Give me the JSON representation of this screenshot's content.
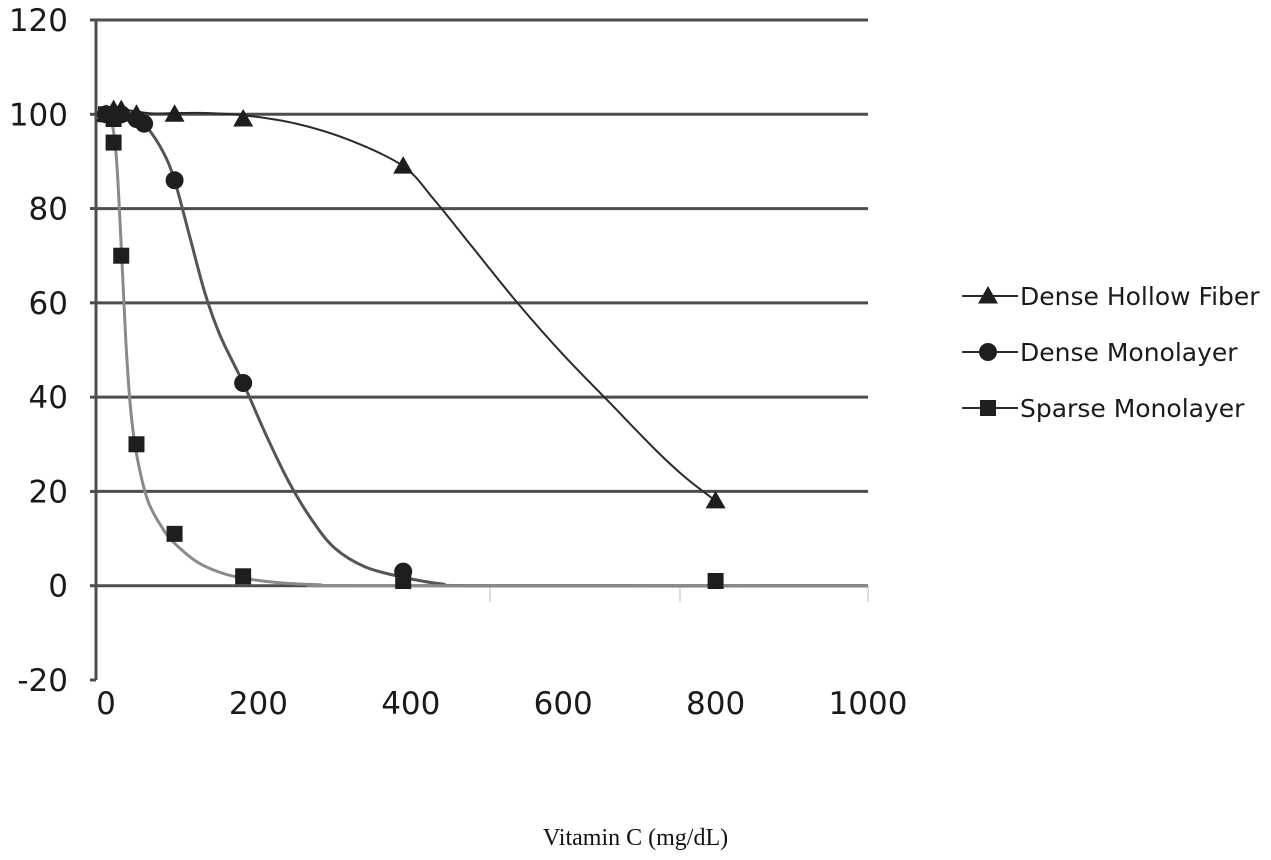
{
  "chart_data": {
    "type": "line",
    "xlabel": "Vitamin C (mg/dL)",
    "ylabel": "",
    "xlim": [
      0,
      1000
    ],
    "ylim": [
      -20,
      120
    ],
    "x_ticks": [
      "0",
      "200",
      "400",
      "600",
      "800",
      "1000"
    ],
    "y_ticks": [
      "120",
      "100",
      "80",
      "60",
      "40",
      "20",
      "0",
      "-20"
    ],
    "grid": "horizontal",
    "legend_position": "right",
    "series": [
      {
        "name": "Dense Hollow Fiber",
        "marker": "triangle",
        "color": "#2a2a2a",
        "points": [
          [
            0,
            100
          ],
          [
            10,
            101
          ],
          [
            20,
            101
          ],
          [
            40,
            100
          ],
          [
            90,
            100
          ],
          [
            180,
            99
          ],
          [
            390,
            89
          ],
          [
            800,
            18
          ]
        ],
        "curve": [
          [
            0,
            100
          ],
          [
            20,
            101
          ],
          [
            60,
            100.2
          ],
          [
            120,
            100.3
          ],
          [
            180,
            99.8
          ],
          [
            250,
            98
          ],
          [
            320,
            94.5
          ],
          [
            390,
            89
          ],
          [
            430,
            82
          ],
          [
            480,
            72
          ],
          [
            540,
            60
          ],
          [
            600,
            49
          ],
          [
            660,
            39
          ],
          [
            720,
            29
          ],
          [
            760,
            23
          ],
          [
            800,
            18
          ]
        ]
      },
      {
        "name": "Dense Monolayer",
        "marker": "circle",
        "color": "#555555",
        "points": [
          [
            0,
            100
          ],
          [
            10,
            100
          ],
          [
            20,
            100
          ],
          [
            40,
            99
          ],
          [
            50,
            98
          ],
          [
            90,
            86
          ],
          [
            180,
            43
          ],
          [
            390,
            3
          ]
        ],
        "curve": [
          [
            0,
            100
          ],
          [
            20,
            100
          ],
          [
            40,
            99
          ],
          [
            55,
            97
          ],
          [
            75,
            92
          ],
          [
            90,
            86
          ],
          [
            110,
            74
          ],
          [
            130,
            62
          ],
          [
            150,
            53
          ],
          [
            180,
            43
          ],
          [
            210,
            32
          ],
          [
            240,
            22
          ],
          [
            270,
            14
          ],
          [
            300,
            8
          ],
          [
            340,
            4
          ],
          [
            390,
            1.8
          ],
          [
            440,
            0.4
          ],
          [
            500,
            0
          ],
          [
            1000,
            0
          ]
        ]
      },
      {
        "name": "Sparse Monolayer",
        "marker": "square",
        "color": "#8a8a8a",
        "points": [
          [
            0,
            100
          ],
          [
            10,
            99
          ],
          [
            10,
            94
          ],
          [
            20,
            70
          ],
          [
            40,
            30
          ],
          [
            90,
            11
          ],
          [
            180,
            2
          ],
          [
            390,
            1
          ],
          [
            800,
            1
          ]
        ],
        "curve": [
          [
            0,
            100
          ],
          [
            8,
            98
          ],
          [
            14,
            90
          ],
          [
            20,
            72
          ],
          [
            26,
            52
          ],
          [
            32,
            38
          ],
          [
            40,
            28
          ],
          [
            55,
            18
          ],
          [
            75,
            12
          ],
          [
            90,
            9
          ],
          [
            120,
            5
          ],
          [
            150,
            2.8
          ],
          [
            180,
            1.6
          ],
          [
            230,
            0.6
          ],
          [
            280,
            0.2
          ],
          [
            330,
            0
          ],
          [
            1000,
            0
          ]
        ]
      }
    ]
  }
}
